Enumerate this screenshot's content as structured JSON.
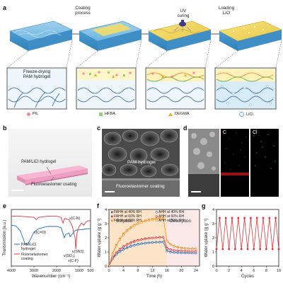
{
  "figure": {
    "panels": [
      "a",
      "b",
      "c",
      "d",
      "e",
      "f",
      "g"
    ]
  },
  "panel_a": {
    "steps": [
      "Coating\nprocess",
      "UV\ncuring",
      "Loading\nLiCl"
    ],
    "first_label": "Freeze-drying\nPAM hydrogel",
    "legend": [
      {
        "name": "PIL",
        "color": "#f08aa0",
        "shape": "circle"
      },
      {
        "name": "HFBA",
        "color": "#8fd46a",
        "shape": "square"
      },
      {
        "name": "DEGMA",
        "color": "#e8b020",
        "shape": "triangle"
      },
      {
        "name": "LiCl",
        "color": "#ffffff",
        "shape": "circle"
      }
    ]
  },
  "panel_b": {
    "top_label": "PAM/LiCl hydrogel",
    "bottom_label": "Fluoroelastomer coating"
  },
  "panel_c": {
    "top_label": "PAM hydrogel",
    "bottom_label": "Fluoroelastomer coating"
  },
  "panel_d": {
    "labels": [
      "C",
      "Cl"
    ]
  },
  "colors": {
    "pink_sample": "#f4a0c8",
    "series_orange": "#f29023",
    "series_red": "#e0343a",
    "series_blue": "#1e6fc0",
    "sorption_bg": "#fde3c8",
    "desorption_bg": "#fbe8e8"
  },
  "chart_data": [
    {
      "panel": "e",
      "type": "line",
      "xlabel": "Wavenumber (cm⁻¹)",
      "ylabel": "Transmission (a.u.)",
      "xlim": [
        4000,
        500
      ],
      "x_ticks": [
        "4000",
        "3000",
        "2000",
        "1000",
        "500"
      ],
      "series": [
        {
          "name": "PAM/LiCl hydrogel",
          "color": "#1e6fc0",
          "x": [
            4000,
            3800,
            3600,
            3400,
            3300,
            3200,
            3000,
            2800,
            2400,
            2000,
            1800,
            1660,
            1600,
            1450,
            1400,
            1200,
            1100,
            1000,
            800,
            600,
            500
          ],
          "y": [
            0.72,
            0.71,
            0.62,
            0.4,
            0.38,
            0.44,
            0.6,
            0.66,
            0.7,
            0.7,
            0.68,
            0.5,
            0.56,
            0.58,
            0.52,
            0.62,
            0.64,
            0.64,
            0.65,
            0.66,
            0.66
          ]
        },
        {
          "name": "Fluoroelastomer coating",
          "color": "#e0343a",
          "x": [
            4000,
            3600,
            3000,
            2900,
            2800,
            2400,
            2000,
            1800,
            1720,
            1650,
            1450,
            1300,
            1250,
            1180,
            1150,
            1100,
            1000,
            900,
            800,
            700,
            600,
            500
          ],
          "y": [
            0.88,
            0.88,
            0.86,
            0.82,
            0.86,
            0.88,
            0.88,
            0.86,
            0.76,
            0.84,
            0.82,
            0.7,
            0.6,
            0.5,
            0.3,
            0.58,
            0.7,
            0.76,
            0.72,
            0.78,
            0.8,
            0.8
          ]
        }
      ],
      "annotations": [
        "v(C=O)",
        "v(C-N)",
        "v(SO₃)",
        "v(SNS)",
        "v(C-F)"
      ],
      "legend": [
        "PAM/LiCl\nhydrogel",
        "Fluoroelastomer\ncoating"
      ]
    },
    {
      "panel": "f",
      "type": "line",
      "xlabel": "Time (h)",
      "ylabel": "Water uptake (g g⁻¹)",
      "xlim": [
        0,
        25
      ],
      "ylim": [
        0,
        4
      ],
      "x_ticks": [
        0,
        4,
        8,
        12,
        16,
        20,
        24
      ],
      "y_ticks": [
        0,
        1,
        2,
        3,
        4
      ],
      "region_labels": [
        "Sorption",
        "Desorption"
      ],
      "series": [
        {
          "name": "FAHH at 40% RH",
          "color": "#1e6fc0",
          "marker": "square",
          "x": [
            0,
            1,
            2,
            3,
            4,
            5,
            6,
            7,
            8,
            9,
            10,
            11,
            12,
            13,
            14,
            15,
            16,
            17,
            18,
            19,
            20,
            21,
            22,
            23,
            24
          ],
          "y": [
            0,
            0.55,
            0.85,
            1.05,
            1.2,
            1.32,
            1.42,
            1.5,
            1.56,
            1.6,
            1.63,
            1.66,
            1.68,
            1.7,
            1.71,
            1.72,
            1.1,
            1.0,
            0.98,
            0.96,
            0.95,
            0.94,
            0.94,
            0.93,
            0.93
          ]
        },
        {
          "name": "FAHH at 60% RH",
          "color": "#e0343a",
          "marker": "square",
          "x": [
            0,
            1,
            2,
            3,
            4,
            5,
            6,
            7,
            8,
            9,
            10,
            11,
            12,
            13,
            14,
            15,
            16,
            17,
            18,
            19,
            20,
            21,
            22,
            23,
            24
          ],
          "y": [
            0,
            0.6,
            0.95,
            1.2,
            1.4,
            1.55,
            1.67,
            1.77,
            1.85,
            1.9,
            1.95,
            1.98,
            2.0,
            2.02,
            2.04,
            2.05,
            1.3,
            1.18,
            1.12,
            1.1,
            1.08,
            1.07,
            1.06,
            1.05,
            1.05
          ]
        },
        {
          "name": "FAHH at 80% RH",
          "color": "#f29023",
          "marker": "square",
          "x": [
            0,
            1,
            2,
            3,
            4,
            5,
            6,
            7,
            8,
            9,
            10,
            11,
            12,
            13,
            14,
            15,
            16,
            17,
            18,
            19,
            20,
            21,
            22,
            23,
            24
          ],
          "y": [
            0,
            0.9,
            1.5,
            1.95,
            2.3,
            2.55,
            2.75,
            2.92,
            3.05,
            3.15,
            3.22,
            3.28,
            3.33,
            3.37,
            3.4,
            3.42,
            1.8,
            1.55,
            1.42,
            1.35,
            1.3,
            1.27,
            1.25,
            1.24,
            1.23
          ]
        },
        {
          "name": "AHH at 40% RH",
          "color": "#1e6fc0",
          "marker": "circle",
          "x": [
            0,
            1,
            2,
            3,
            4,
            5,
            6,
            7,
            8,
            9,
            10,
            11,
            12,
            13,
            14,
            15,
            16,
            17,
            18,
            19,
            20,
            21,
            22,
            23,
            24
          ],
          "y": [
            0,
            0.5,
            0.8,
            1.0,
            1.15,
            1.27,
            1.37,
            1.45,
            1.51,
            1.56,
            1.6,
            1.63,
            1.65,
            1.67,
            1.68,
            1.69,
            1.05,
            0.97,
            0.95,
            0.93,
            0.92,
            0.92,
            0.91,
            0.91,
            0.9
          ]
        },
        {
          "name": "AHH at 60% RH",
          "color": "#e0343a",
          "marker": "circle",
          "x": [
            0,
            1,
            2,
            3,
            4,
            5,
            6,
            7,
            8,
            9,
            10,
            11,
            12,
            13,
            14,
            15,
            16,
            17,
            18,
            19,
            20,
            21,
            22,
            23,
            24
          ],
          "y": [
            0,
            0.58,
            0.92,
            1.16,
            1.35,
            1.5,
            1.62,
            1.72,
            1.8,
            1.86,
            1.91,
            1.95,
            1.98,
            2.0,
            2.02,
            2.03,
            1.25,
            1.14,
            1.1,
            1.08,
            1.06,
            1.05,
            1.04,
            1.04,
            1.03
          ]
        },
        {
          "name": "AHH at 80% RH",
          "color": "#f29023",
          "marker": "circle",
          "x": [
            0,
            1,
            2,
            3,
            4,
            5,
            6,
            7,
            8,
            9,
            10,
            11,
            12,
            13,
            14,
            15,
            16,
            17,
            18,
            19,
            20,
            21,
            22,
            23,
            24
          ],
          "y": [
            0,
            0.85,
            1.4,
            1.85,
            2.2,
            2.47,
            2.68,
            2.85,
            2.98,
            3.08,
            3.16,
            3.22,
            3.27,
            3.31,
            3.34,
            3.36,
            1.75,
            1.5,
            1.38,
            1.31,
            1.27,
            1.24,
            1.22,
            1.21,
            1.2
          ]
        }
      ]
    },
    {
      "panel": "g",
      "type": "line",
      "xlabel": "Cycles",
      "ylabel": "Water uptake (g g⁻¹)",
      "xlim": [
        0,
        10
      ],
      "ylim": [
        0,
        4
      ],
      "x_ticks": [
        0,
        2,
        4,
        6,
        8,
        10
      ],
      "y_ticks": [
        0,
        1,
        2,
        3,
        4
      ],
      "series": [
        {
          "name": "",
          "color": "#e0343a",
          "x": [
            0,
            0.5,
            1,
            1.5,
            2,
            2.5,
            3,
            3.5,
            4,
            4.5,
            5,
            5.5,
            6,
            6.5,
            7,
            7.5,
            8,
            8.5,
            9,
            9.5,
            10
          ],
          "y": [
            1.2,
            3.4,
            1.2,
            3.4,
            1.2,
            3.4,
            1.2,
            3.4,
            1.2,
            3.4,
            1.2,
            3.4,
            1.2,
            3.4,
            1.2,
            3.4,
            1.2,
            3.4,
            1.2,
            3.4,
            1.2
          ]
        }
      ]
    }
  ]
}
